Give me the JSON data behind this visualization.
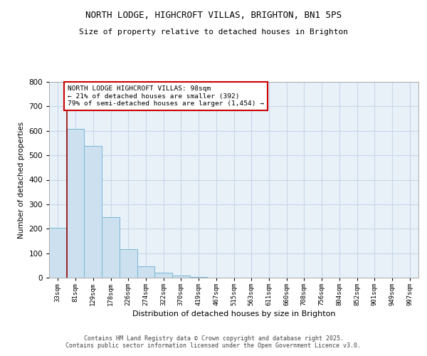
{
  "title_line1": "NORTH LODGE, HIGHCROFT VILLAS, BRIGHTON, BN1 5PS",
  "title_line2": "Size of property relative to detached houses in Brighton",
  "xlabel": "Distribution of detached houses by size in Brighton",
  "ylabel": "Number of detached properties",
  "bin_labels": [
    "33sqm",
    "81sqm",
    "129sqm",
    "178sqm",
    "226sqm",
    "274sqm",
    "322sqm",
    "370sqm",
    "419sqm",
    "467sqm",
    "515sqm",
    "563sqm",
    "611sqm",
    "660sqm",
    "708sqm",
    "756sqm",
    "804sqm",
    "852sqm",
    "901sqm",
    "949sqm",
    "997sqm"
  ],
  "bar_heights": [
    205,
    607,
    537,
    248,
    115,
    48,
    20,
    8,
    3,
    1,
    0,
    0,
    0,
    0,
    0,
    0,
    0,
    0,
    0,
    0,
    0
  ],
  "bar_color": "#cce0f0",
  "bar_edge_color": "#7ab8d4",
  "vline_color": "#990000",
  "annotation_text": "NORTH LODGE HIGHCROFT VILLAS: 98sqm\n← 21% of detached houses are smaller (392)\n79% of semi-detached houses are larger (1,454) →",
  "annotation_box_color": "#ffffff",
  "annotation_box_edge_color": "#cc0000",
  "ylim": [
    0,
    800
  ],
  "yticks": [
    0,
    100,
    200,
    300,
    400,
    500,
    600,
    700,
    800
  ],
  "grid_color": "#c8d8e8",
  "footer_text": "Contains HM Land Registry data © Crown copyright and database right 2025.\nContains public sector information licensed under the Open Government Licence v3.0.",
  "bg_color": "#e8f0f8"
}
